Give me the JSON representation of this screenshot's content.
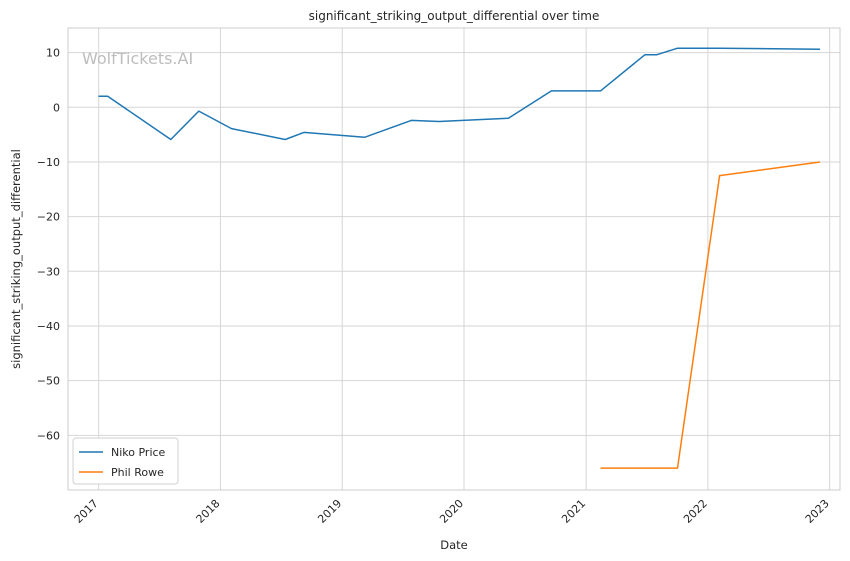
{
  "chart_data": {
    "type": "line",
    "title": "significant_striking_output_differential over time",
    "xlabel": "Date",
    "ylabel": "significant_striking_output_differential",
    "watermark": "WolfTickets.AI",
    "x_ticks": [
      "2017",
      "2018",
      "2019",
      "2020",
      "2021",
      "2022",
      "2023"
    ],
    "y_ticks": [
      10,
      0,
      -10,
      -20,
      -30,
      -40,
      -50,
      -60
    ],
    "xlim": [
      "2016-10-01",
      "2023-02-01"
    ],
    "ylim": [
      -70,
      14.5
    ],
    "grid": true,
    "legend_position": "lower-left",
    "series": [
      {
        "name": "Niko Price",
        "color": "#1f77b4",
        "points": [
          [
            "2016-12-31",
            2.0
          ],
          [
            "2017-01-28",
            2.0
          ],
          [
            "2017-08-05",
            -5.9
          ],
          [
            "2017-10-28",
            -0.7
          ],
          [
            "2018-02-03",
            -3.9
          ],
          [
            "2018-07-14",
            -5.9
          ],
          [
            "2018-09-08",
            -4.6
          ],
          [
            "2019-03-09",
            -5.5
          ],
          [
            "2019-07-27",
            -2.4
          ],
          [
            "2019-10-18",
            -2.6
          ],
          [
            "2020-05-13",
            -2.0
          ],
          [
            "2020-09-19",
            3.0
          ],
          [
            "2021-02-13",
            3.0
          ],
          [
            "2021-06-26",
            9.6
          ],
          [
            "2021-07-31",
            9.6
          ],
          [
            "2021-10-02",
            10.8
          ],
          [
            "2022-02-05",
            10.8
          ],
          [
            "2022-12-03",
            10.6
          ]
        ]
      },
      {
        "name": "Phil Rowe",
        "color": "#ff7f0e",
        "points": [
          [
            "2021-02-13",
            -66.0
          ],
          [
            "2021-10-02",
            -66.0
          ],
          [
            "2022-02-05",
            -12.5
          ],
          [
            "2022-12-03",
            -10.0
          ]
        ]
      }
    ]
  }
}
